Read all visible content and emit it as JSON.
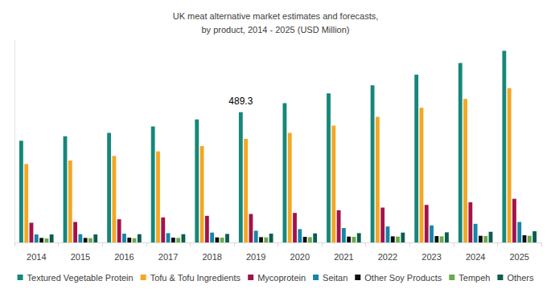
{
  "chart_data": {
    "type": "bar",
    "title": "UK meat alternative market estimates and forecasts,\nby product, 2014 - 2025 (USD Million)",
    "categories": [
      "2014",
      "2015",
      "2016",
      "2017",
      "2018",
      "2019",
      "2020",
      "2021",
      "2022",
      "2023",
      "2024",
      "2025"
    ],
    "series": [
      {
        "name": "Textured Vegetable Protein",
        "color": "#16877a",
        "values": [
          382,
          399,
          412,
          436,
          462,
          489.3,
          523,
          560,
          590,
          630,
          674,
          720
        ]
      },
      {
        "name": "Tofu & Tofu Ingredients",
        "color": "#f5a623",
        "values": [
          295,
          308,
          325,
          342,
          362,
          389,
          412,
          439,
          472,
          506,
          539,
          580
        ]
      },
      {
        "name": "Mycoprotein",
        "color": "#a3134b",
        "values": [
          74,
          77,
          87,
          94,
          100,
          107,
          111,
          121,
          131,
          141,
          151,
          164
        ]
      },
      {
        "name": "Seitan",
        "color": "#1585a8",
        "values": [
          30,
          31,
          33,
          35,
          37,
          44,
          50,
          54,
          60,
          64,
          70,
          77
        ]
      },
      {
        "name": "Other Soy Products",
        "color": "#0d0d0d",
        "values": [
          17,
          17,
          18,
          18,
          19,
          20,
          21,
          22,
          23,
          24,
          25,
          27
        ]
      },
      {
        "name": "Tempeh",
        "color": "#6aaa4a",
        "values": [
          15,
          16,
          16,
          17,
          18,
          19,
          20,
          21,
          22,
          23,
          24,
          25
        ]
      },
      {
        "name": "Others",
        "color": "#0b5e50",
        "values": [
          30,
          30,
          31,
          31,
          32,
          33,
          34,
          35,
          37,
          38,
          40,
          42
        ]
      }
    ],
    "annotations": [
      {
        "text": "489.3",
        "category": "2019",
        "series": "Textured Vegetable Protein"
      }
    ],
    "ylim": [
      0,
      760
    ],
    "tick_labels": "x",
    "grid": false,
    "legend": "bottom"
  }
}
